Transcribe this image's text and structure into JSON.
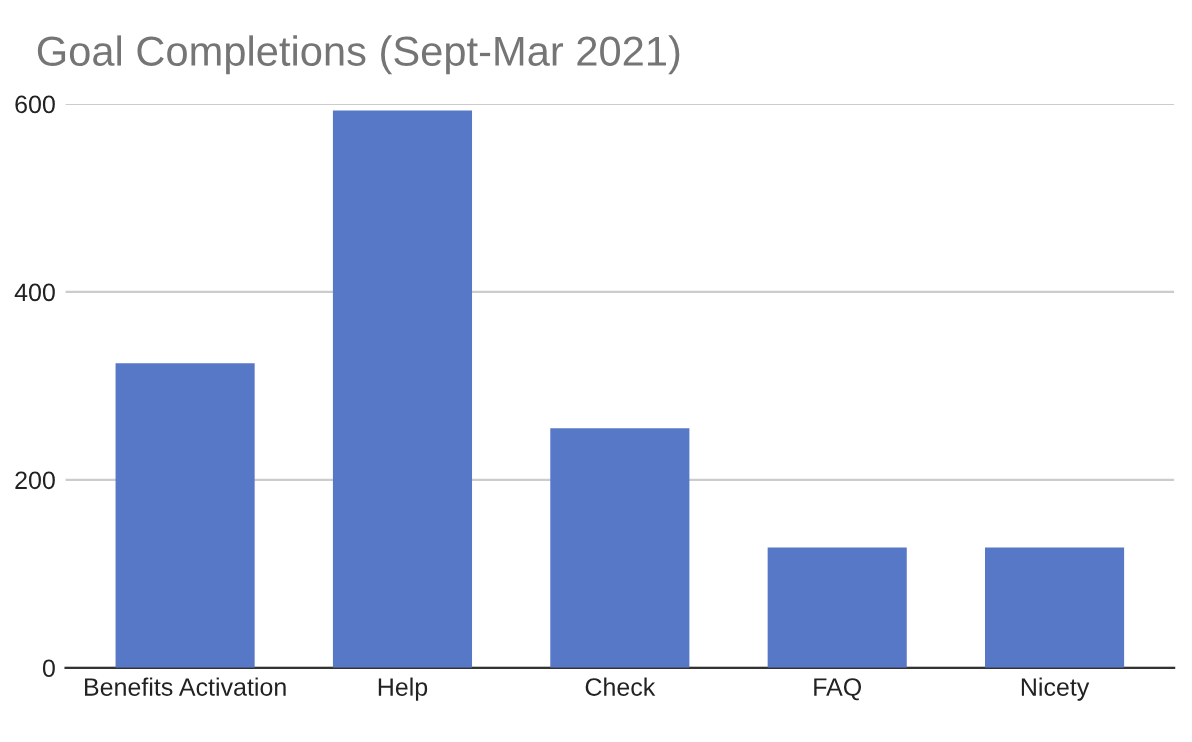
{
  "chart_data": {
    "type": "bar",
    "title": "Goal Completions (Sept-Mar 2021)",
    "categories": [
      "Benefits Activation",
      "Help",
      "Check",
      "FAQ",
      "Nicety"
    ],
    "values": [
      324,
      593,
      255,
      128,
      128
    ],
    "color": "#5778c6",
    "ylim": [
      0,
      600
    ],
    "yticks": [
      0,
      200,
      400,
      600
    ],
    "grid": "y"
  }
}
